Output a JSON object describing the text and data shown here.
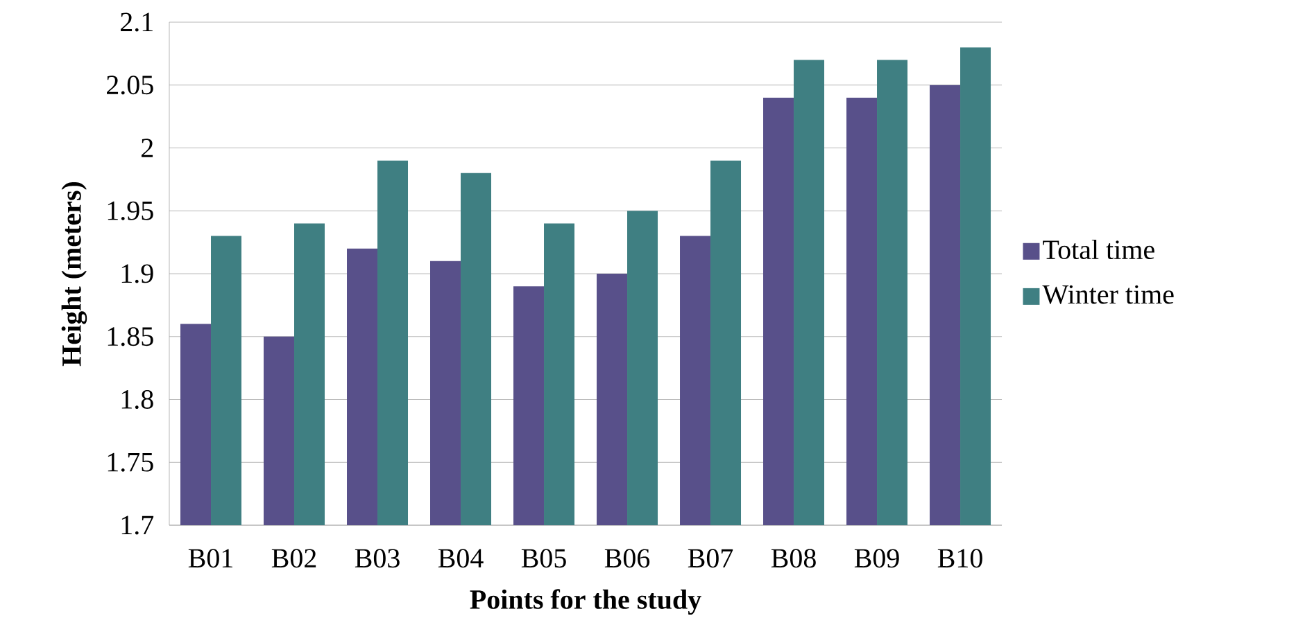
{
  "chart_data": {
    "type": "bar",
    "xlabel": "Points for the study",
    "ylabel": "Height (meters)",
    "categories": [
      "B01",
      "B02",
      "B03",
      "B04",
      "B05",
      "B06",
      "B07",
      "B08",
      "B09",
      "B10"
    ],
    "series": [
      {
        "name": "Total time",
        "color": "#58508a",
        "values": [
          1.86,
          1.85,
          1.92,
          1.91,
          1.89,
          1.9,
          1.93,
          2.04,
          2.04,
          2.05
        ]
      },
      {
        "name": "Winter time",
        "color": "#3f7f82",
        "values": [
          1.93,
          1.94,
          1.99,
          1.98,
          1.94,
          1.95,
          1.99,
          2.07,
          2.07,
          2.08
        ]
      }
    ],
    "ylim": [
      1.7,
      2.1
    ],
    "yticks": [
      1.7,
      1.75,
      1.8,
      1.85,
      1.9,
      1.95,
      2,
      2.05,
      2.1
    ],
    "grid": "y",
    "legend": "right"
  }
}
